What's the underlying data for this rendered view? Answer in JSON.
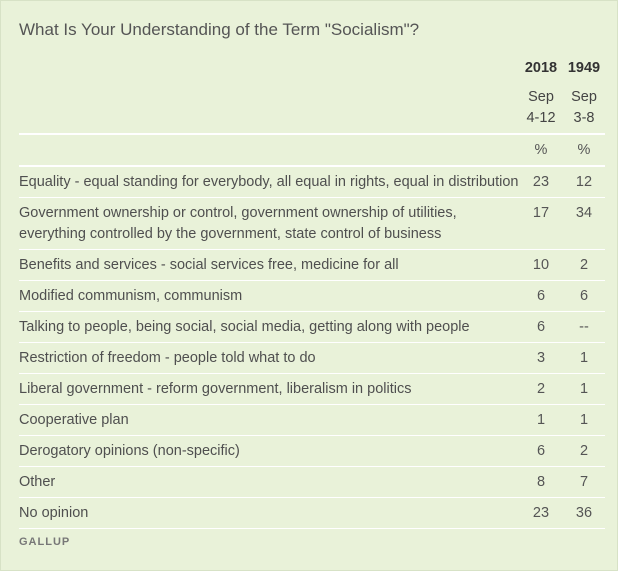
{
  "chart_data": {
    "type": "table",
    "title": "What Is Your Understanding of the Term \"Socialism\"?",
    "columns": [
      {
        "year": "2018",
        "dates_line1": "Sep",
        "dates_line2": "4-12",
        "unit": "%"
      },
      {
        "year": "1949",
        "dates_line1": "Sep",
        "dates_line2": "3-8",
        "unit": "%"
      }
    ],
    "rows": [
      {
        "label": "Equality - equal standing for everybody, all equal in rights, equal in distribution",
        "v2018": "23",
        "v1949": "12"
      },
      {
        "label": "Government ownership or control, government ownership of utilities, everything controlled by the government, state control of business",
        "v2018": "17",
        "v1949": "34"
      },
      {
        "label": "Benefits and services - social services free, medicine for all",
        "v2018": "10",
        "v1949": "2"
      },
      {
        "label": "Modified communism, communism",
        "v2018": "6",
        "v1949": "6"
      },
      {
        "label": "Talking to people, being social, social media, getting along with people",
        "v2018": "6",
        "v1949": "--"
      },
      {
        "label": "Restriction of freedom - people told what to do",
        "v2018": "3",
        "v1949": "1"
      },
      {
        "label": "Liberal government - reform government, liberalism in politics",
        "v2018": "2",
        "v1949": "1"
      },
      {
        "label": "Cooperative plan",
        "v2018": "1",
        "v1949": "1"
      },
      {
        "label": "Derogatory opinions (non-specific)",
        "v2018": "6",
        "v1949": "2"
      },
      {
        "label": "Other",
        "v2018": "8",
        "v1949": "7"
      },
      {
        "label": "No opinion",
        "v2018": "23",
        "v1949": "36"
      }
    ],
    "source": "GALLUP"
  }
}
